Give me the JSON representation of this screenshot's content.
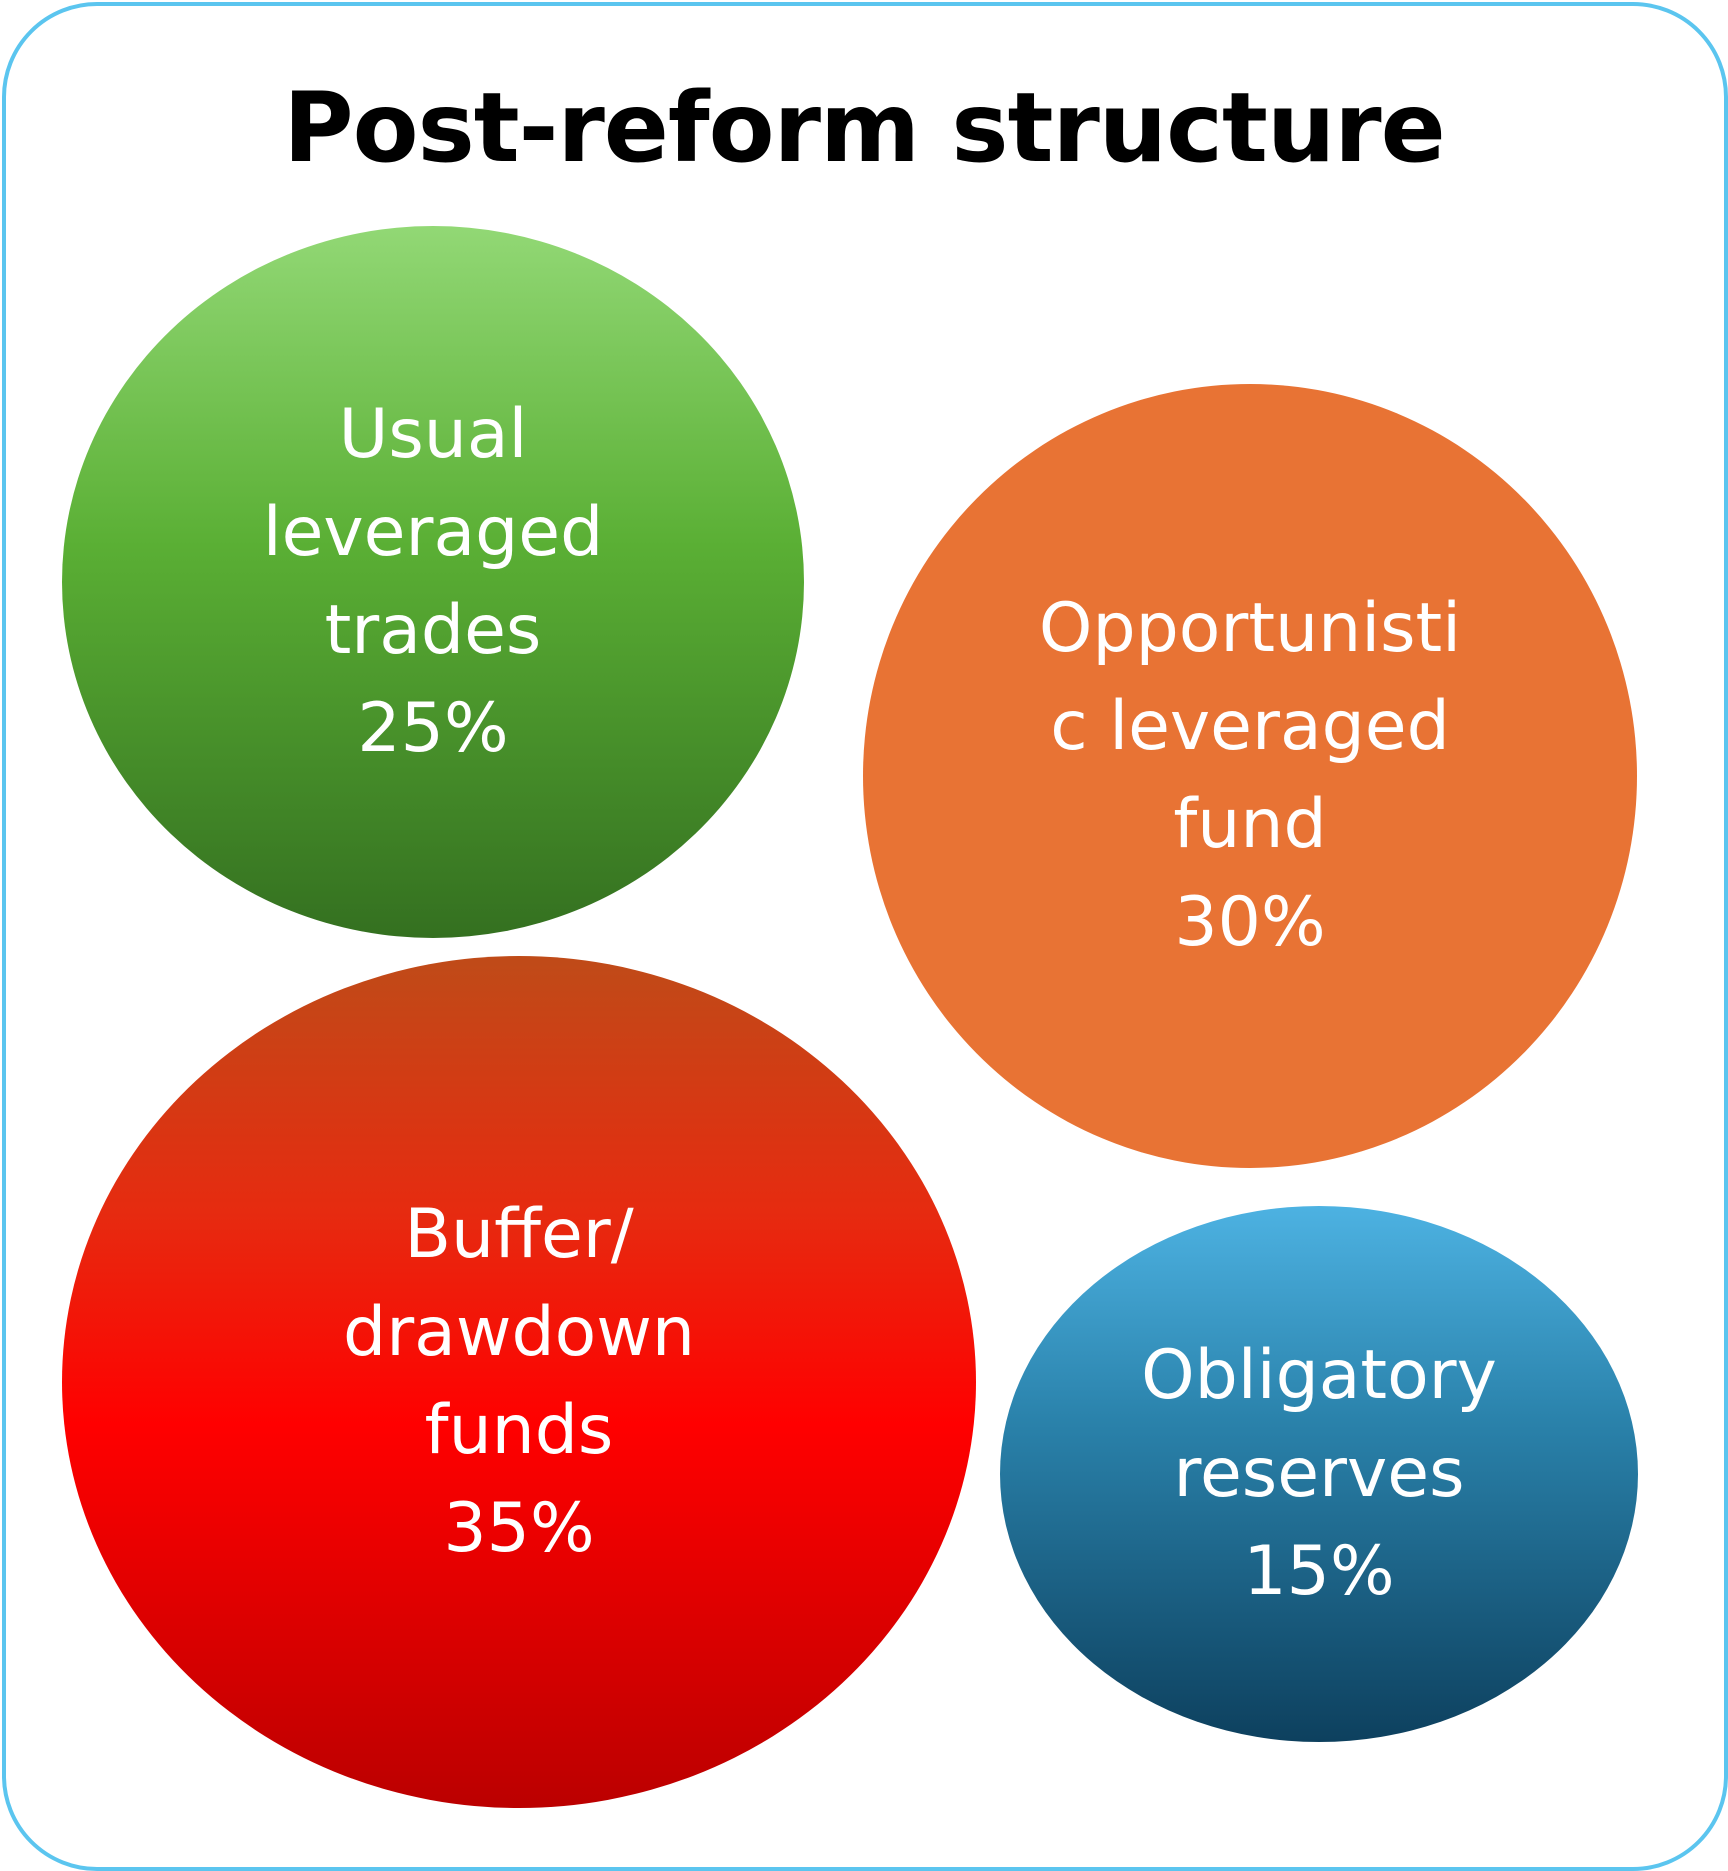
{
  "title": "Post-reform structure",
  "colors": {
    "border": "#5bc5ef",
    "green": "#5aaf34",
    "orange": "#e87334",
    "red": "#ff0000",
    "blue": "#1f6b93"
  },
  "bubbles": [
    {
      "label": "Usual\nleveraged\ntrades",
      "value": "25%"
    },
    {
      "label": "Opportunisti\nc leveraged\nfund",
      "value": "30%"
    },
    {
      "label": "Buffer/\ndrawdown\nfunds",
      "value": "35%"
    },
    {
      "label": "Obligatory\nreserves",
      "value": "15%"
    }
  ]
}
